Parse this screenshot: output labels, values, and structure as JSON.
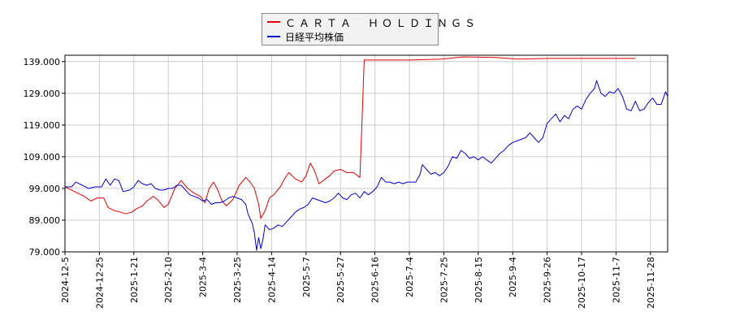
{
  "chart_data": {
    "type": "line",
    "title": "",
    "xlabel": "",
    "ylabel": "",
    "ylim": [
      79,
      141
    ],
    "yticks": [
      "139.000",
      "129.000",
      "119.000",
      "109.000",
      "99.000",
      "89.000",
      "79.000"
    ],
    "ytick_values": [
      139,
      129,
      119,
      109,
      99,
      89,
      79
    ],
    "xticks": [
      "2024-12-5",
      "2024-12-25",
      "2025-1-21",
      "2025-2-10",
      "2025-3-4",
      "2025-3-25",
      "2025-4-14",
      "2025-5-7",
      "2025-5-27",
      "2025-6-16",
      "2025-7-4",
      "2025-7-25",
      "2025-8-15",
      "2025-9-4",
      "2025-9-26",
      "2025-10-17",
      "2025-11-7",
      "2025-11-28"
    ],
    "grid": true,
    "legend_position": "top-center",
    "series": [
      {
        "name": "ＣＡＲＴＡ　ＨＯＬＤＩＮＧＳ",
        "color": "#e00000",
        "points": [
          [
            0,
            99.5
          ],
          [
            3,
            98.5
          ],
          [
            6,
            97.5
          ],
          [
            9,
            96.5
          ],
          [
            12,
            95
          ],
          [
            15,
            96
          ],
          [
            18,
            96
          ],
          [
            20,
            93
          ],
          [
            23,
            92
          ],
          [
            26,
            91.5
          ],
          [
            28,
            91
          ],
          [
            31,
            91.5
          ],
          [
            33,
            92.5
          ],
          [
            36,
            93.5
          ],
          [
            38,
            95
          ],
          [
            41,
            96.5
          ],
          [
            43,
            95.5
          ],
          [
            46,
            93
          ],
          [
            48,
            94
          ],
          [
            51,
            99
          ],
          [
            54,
            101.5
          ],
          [
            57,
            99
          ],
          [
            60,
            97.5
          ],
          [
            63,
            96.5
          ],
          [
            65,
            94.5
          ],
          [
            67,
            99
          ],
          [
            69,
            101
          ],
          [
            71,
            98.5
          ],
          [
            73,
            95
          ],
          [
            75,
            93.5
          ],
          [
            78,
            95.5
          ],
          [
            81,
            100
          ],
          [
            84,
            102.5
          ],
          [
            86,
            101
          ],
          [
            88,
            99
          ],
          [
            90,
            94
          ],
          [
            91,
            89.5
          ],
          [
            93,
            92
          ],
          [
            95,
            96
          ],
          [
            97,
            97
          ],
          [
            100,
            99.5
          ],
          [
            102,
            102
          ],
          [
            104,
            104
          ],
          [
            107,
            102
          ],
          [
            110,
            101
          ],
          [
            112,
            103
          ],
          [
            114,
            107
          ],
          [
            116,
            104.5
          ],
          [
            118,
            100.5
          ],
          [
            120,
            101.5
          ],
          [
            123,
            103
          ],
          [
            125,
            104.5
          ],
          [
            128,
            105
          ],
          [
            131,
            104
          ],
          [
            134,
            104
          ],
          [
            136,
            103
          ],
          [
            137,
            102.5
          ],
          [
            138,
            120
          ],
          [
            139,
            139.5
          ],
          [
            145,
            139.5
          ],
          [
            160,
            139.5
          ],
          [
            175,
            139.8
          ],
          [
            185,
            140.5
          ],
          [
            200,
            140.3
          ],
          [
            210,
            139.8
          ],
          [
            225,
            140
          ],
          [
            245,
            140
          ],
          [
            260,
            140
          ],
          [
            265,
            140
          ]
        ]
      },
      {
        "name": "日経平均株価",
        "color": "#0000cc",
        "points": [
          [
            0,
            99.5
          ],
          [
            3,
            99.5
          ],
          [
            5,
            101
          ],
          [
            8,
            100
          ],
          [
            11,
            99
          ],
          [
            14,
            99.5
          ],
          [
            17,
            99.5
          ],
          [
            19,
            102
          ],
          [
            21,
            100
          ],
          [
            23,
            102
          ],
          [
            25,
            101.5
          ],
          [
            27,
            98
          ],
          [
            30,
            98.5
          ],
          [
            32,
            99.5
          ],
          [
            34,
            101.5
          ],
          [
            36,
            100.5
          ],
          [
            38,
            100
          ],
          [
            40,
            100.5
          ],
          [
            42,
            99
          ],
          [
            44,
            98.5
          ],
          [
            46,
            98.5
          ],
          [
            48,
            99
          ],
          [
            50,
            99
          ],
          [
            52,
            100
          ],
          [
            54,
            100
          ],
          [
            56,
            98.5
          ],
          [
            58,
            97
          ],
          [
            60,
            96.5
          ],
          [
            62,
            96
          ],
          [
            64,
            95
          ],
          [
            66,
            95.5
          ],
          [
            68,
            94
          ],
          [
            70,
            94.5
          ],
          [
            72,
            94.5
          ],
          [
            74,
            95
          ],
          [
            76,
            96
          ],
          [
            78,
            96.5
          ],
          [
            80,
            96
          ],
          [
            82,
            95.5
          ],
          [
            84,
            94
          ],
          [
            85,
            91
          ],
          [
            87,
            88
          ],
          [
            88,
            85
          ],
          [
            89,
            79.5
          ],
          [
            90,
            83.5
          ],
          [
            91,
            80
          ],
          [
            92,
            83
          ],
          [
            93,
            87.5
          ],
          [
            95,
            86
          ],
          [
            97,
            86.5
          ],
          [
            99,
            87.5
          ],
          [
            101,
            87
          ],
          [
            103,
            88.5
          ],
          [
            105,
            90
          ],
          [
            107,
            91.5
          ],
          [
            109,
            92.5
          ],
          [
            111,
            93
          ],
          [
            113,
            94
          ],
          [
            115,
            96
          ],
          [
            117,
            95.5
          ],
          [
            119,
            95
          ],
          [
            121,
            94.5
          ],
          [
            123,
            95
          ],
          [
            125,
            96
          ],
          [
            127,
            97.5
          ],
          [
            129,
            96
          ],
          [
            131,
            95.5
          ],
          [
            133,
            97
          ],
          [
            135,
            97.5
          ],
          [
            137,
            96
          ],
          [
            139,
            98
          ],
          [
            141,
            97
          ],
          [
            143,
            98
          ],
          [
            145,
            99.5
          ],
          [
            147,
            102.5
          ],
          [
            149,
            101
          ],
          [
            151,
            101
          ],
          [
            153,
            100.5
          ],
          [
            155,
            101
          ],
          [
            157,
            100.5
          ],
          [
            159,
            101
          ],
          [
            161,
            101
          ],
          [
            163,
            101
          ],
          [
            165,
            103.5
          ],
          [
            166,
            106.5
          ],
          [
            168,
            105
          ],
          [
            170,
            103.5
          ],
          [
            172,
            104
          ],
          [
            174,
            103
          ],
          [
            176,
            104
          ],
          [
            178,
            106
          ],
          [
            180,
            109
          ],
          [
            182,
            108.5
          ],
          [
            184,
            111
          ],
          [
            186,
            110
          ],
          [
            188,
            108.5
          ],
          [
            190,
            109
          ],
          [
            192,
            108
          ],
          [
            194,
            109
          ],
          [
            196,
            108
          ],
          [
            198,
            107
          ],
          [
            200,
            108.5
          ],
          [
            202,
            110
          ],
          [
            204,
            111
          ],
          [
            206,
            112.5
          ],
          [
            208,
            113.5
          ],
          [
            210,
            114
          ],
          [
            212,
            114.5
          ],
          [
            214,
            115
          ],
          [
            216,
            116.5
          ],
          [
            218,
            115
          ],
          [
            220,
            113.5
          ],
          [
            222,
            115
          ],
          [
            224,
            119.5
          ],
          [
            226,
            121
          ],
          [
            228,
            122.5
          ],
          [
            230,
            120
          ],
          [
            232,
            122
          ],
          [
            234,
            121
          ],
          [
            236,
            124
          ],
          [
            238,
            125
          ],
          [
            240,
            124
          ],
          [
            242,
            127
          ],
          [
            244,
            129
          ],
          [
            246,
            130.5
          ],
          [
            247,
            133
          ],
          [
            249,
            129
          ],
          [
            251,
            128
          ],
          [
            253,
            129.5
          ],
          [
            255,
            129
          ],
          [
            257,
            130.5
          ],
          [
            259,
            128
          ],
          [
            261,
            124
          ],
          [
            263,
            123.5
          ],
          [
            265,
            126.5
          ],
          [
            267,
            123.5
          ],
          [
            269,
            124
          ],
          [
            271,
            126
          ],
          [
            273,
            127.5
          ],
          [
            275,
            125.5
          ],
          [
            277,
            125.5
          ],
          [
            279,
            129.5
          ],
          [
            280,
            128
          ]
        ]
      }
    ]
  }
}
